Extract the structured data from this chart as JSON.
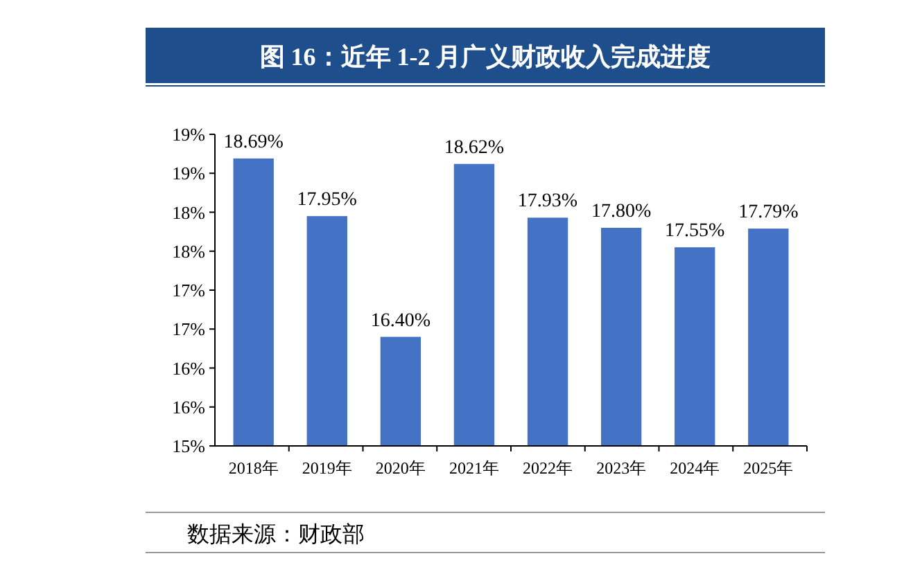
{
  "chart_data": {
    "type": "bar",
    "title": "图 16：近年 1-2 月广义财政收入完成进度",
    "categories": [
      "2018年",
      "2019年",
      "2020年",
      "2021年",
      "2022年",
      "2023年",
      "2024年",
      "2025年"
    ],
    "values": [
      18.69,
      17.95,
      16.4,
      18.62,
      17.93,
      17.8,
      17.55,
      17.79
    ],
    "value_labels": [
      "18.69%",
      "17.95%",
      "16.40%",
      "18.62%",
      "17.93%",
      "17.80%",
      "17.55%",
      "17.79%"
    ],
    "color": "#4472c4",
    "ylim": [
      15,
      19
    ],
    "yticks": [
      {
        "value": 15,
        "label": "15%"
      },
      {
        "value": 15.5,
        "label": "16%"
      },
      {
        "value": 16,
        "label": "16%"
      },
      {
        "value": 16.5,
        "label": "17%"
      },
      {
        "value": 17,
        "label": "17%"
      },
      {
        "value": 17.5,
        "label": "18%"
      },
      {
        "value": 18,
        "label": "18%"
      },
      {
        "value": 18.5,
        "label": "19%"
      },
      {
        "value": 19,
        "label": "19%"
      }
    ],
    "grid": false,
    "annotations": [
      "数据来源：财政部"
    ]
  }
}
